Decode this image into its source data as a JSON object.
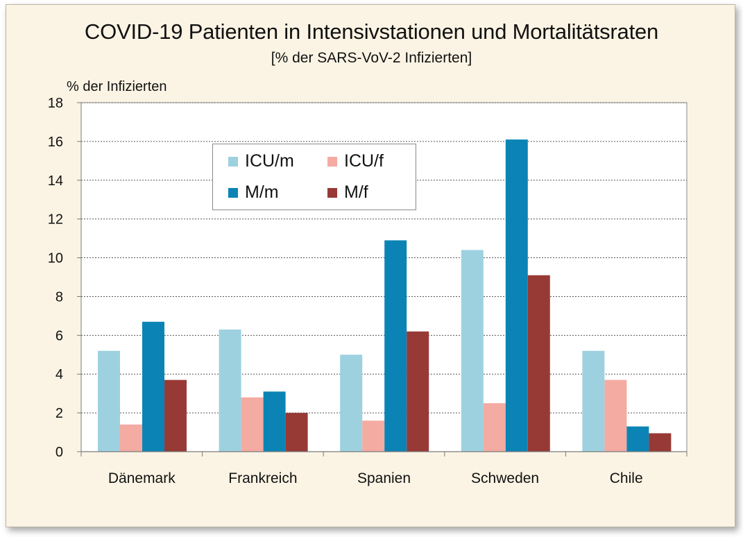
{
  "chart_data": {
    "type": "bar",
    "title": "COVID-19 Patienten in Intensivstationen und Mortalitätsraten",
    "subtitle": "[% der SARS-VoV-2 Infizierten]",
    "ylabel": "% der Infizierten",
    "xlabel": "",
    "ylim": [
      0,
      18
    ],
    "yticks": [
      0,
      2,
      4,
      6,
      8,
      10,
      12,
      14,
      16,
      18
    ],
    "grid": true,
    "legend_position": "top-left inside",
    "categories": [
      "Dänemark",
      "Frankreich",
      "Spanien",
      "Schweden",
      "Chile"
    ],
    "series": [
      {
        "name": "ICU/m",
        "color": "#9dd1e0",
        "values": [
          5.2,
          6.3,
          5.0,
          10.4,
          5.2
        ]
      },
      {
        "name": "ICU/f",
        "color": "#f4aba2",
        "values": [
          1.4,
          2.8,
          1.6,
          2.5,
          3.7
        ]
      },
      {
        "name": "M/m",
        "color": "#0b84b5",
        "values": [
          6.7,
          3.1,
          10.9,
          16.1,
          1.3
        ]
      },
      {
        "name": "M/f",
        "color": "#973a36",
        "values": [
          3.7,
          2.0,
          6.2,
          9.1,
          0.95
        ]
      }
    ]
  }
}
